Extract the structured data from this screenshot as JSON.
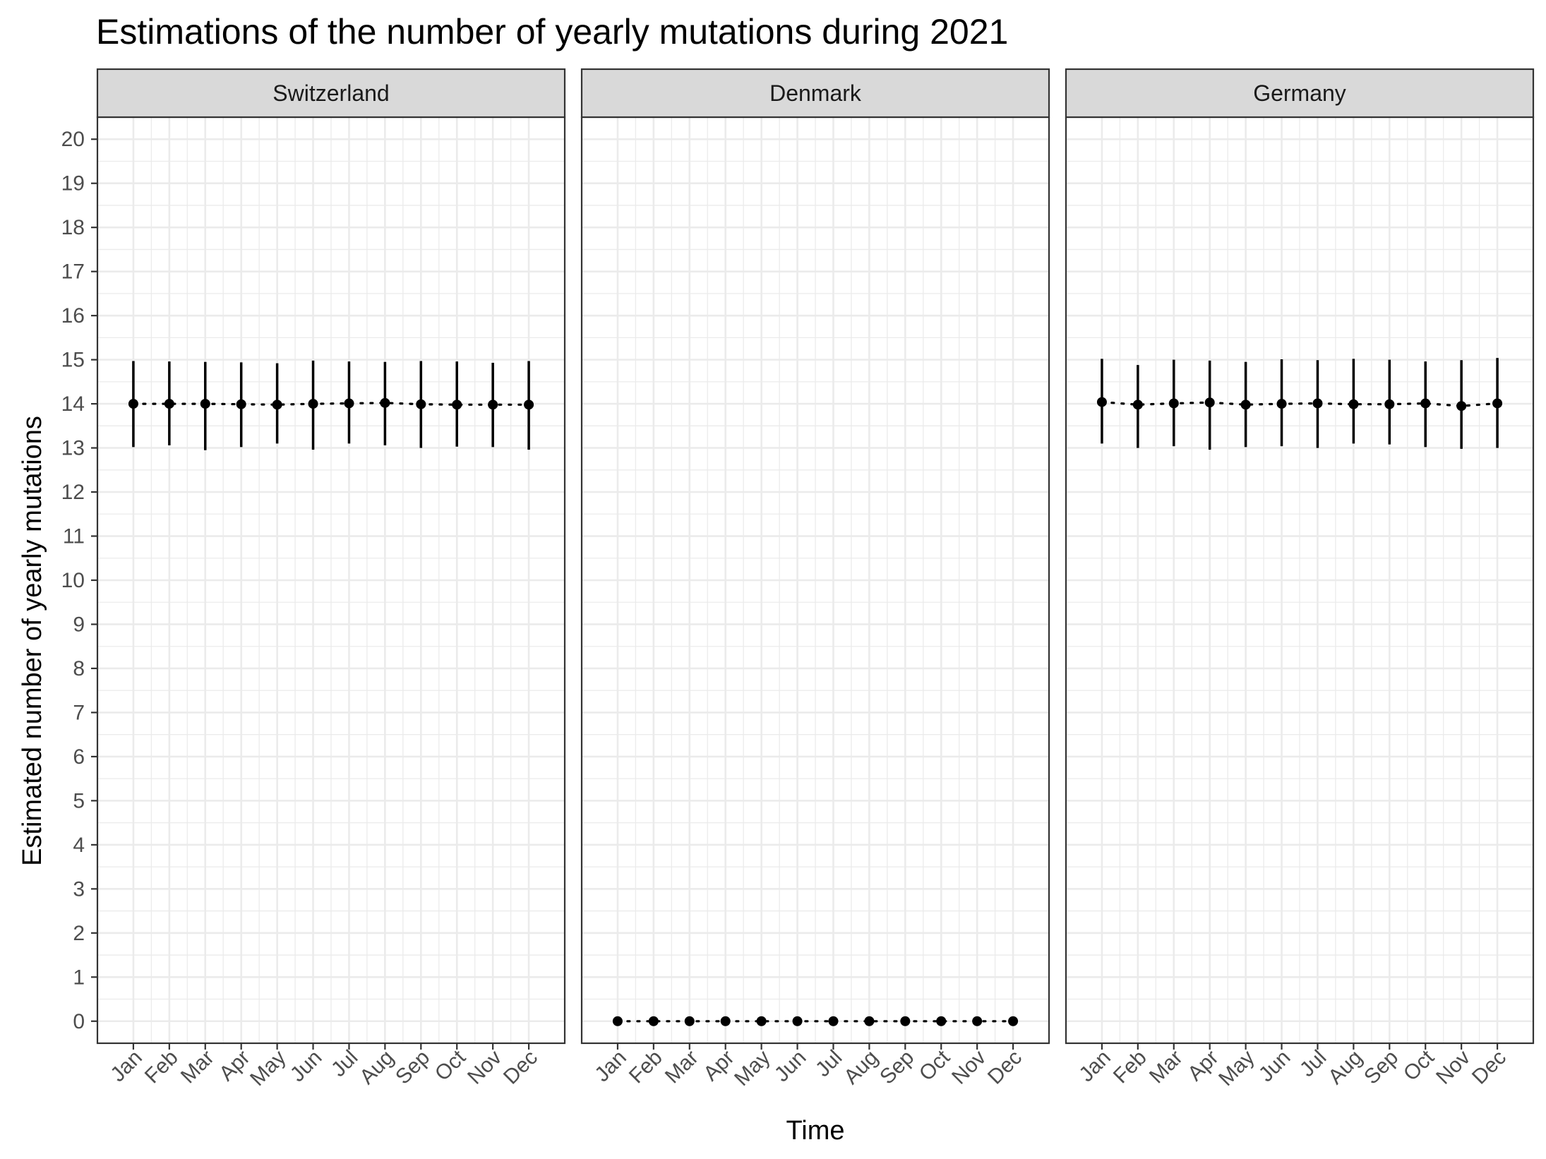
{
  "title": "Estimations of the number of yearly mutations during 2021",
  "chart_data": {
    "type": "scatter",
    "title": "Estimations of the number of yearly mutations during 2021",
    "xlabel": "Time",
    "ylabel": "Estimated number of yearly mutations",
    "categories": [
      "Jan",
      "Feb",
      "Mar",
      "Apr",
      "May",
      "Jun",
      "Jul",
      "Aug",
      "Sep",
      "Oct",
      "Nov",
      "Dec"
    ],
    "y_ticks": [
      0,
      1,
      2,
      3,
      4,
      5,
      6,
      7,
      8,
      9,
      10,
      11,
      12,
      13,
      14,
      15,
      16,
      17,
      18,
      19,
      20
    ],
    "ylim": [
      -0.5,
      20.5
    ],
    "grid": true,
    "line_style": "dotted",
    "colors": {
      "points": "#000000",
      "grid": "#ebebeb",
      "strip_fill": "#d9d9d9",
      "panel_border": "#333333"
    },
    "panels": [
      {
        "name": "Switzerland",
        "values": [
          14.0,
          14.0,
          14.0,
          13.99,
          13.98,
          14.0,
          14.01,
          14.02,
          13.99,
          13.98,
          13.98,
          13.98
        ],
        "lower": [
          13.02,
          13.06,
          12.95,
          13.02,
          13.1,
          12.96,
          13.1,
          13.06,
          13.0,
          13.03,
          13.02,
          12.96
        ],
        "upper": [
          14.97,
          14.96,
          14.95,
          14.94,
          14.92,
          14.98,
          14.96,
          14.95,
          14.97,
          14.96,
          14.93,
          14.97
        ]
      },
      {
        "name": "Denmark",
        "values": [
          0,
          0,
          0,
          0,
          0,
          0,
          0,
          0,
          0,
          0,
          0,
          0
        ],
        "lower": [
          0,
          0,
          0,
          0,
          0,
          0,
          0,
          0,
          0,
          0,
          0,
          0
        ],
        "upper": [
          0,
          0,
          0,
          0,
          0,
          0,
          0,
          0,
          0,
          0,
          0,
          0
        ]
      },
      {
        "name": "Germany",
        "values": [
          14.04,
          13.98,
          14.01,
          14.03,
          13.98,
          14.0,
          14.01,
          13.99,
          13.99,
          14.01,
          13.95,
          14.01
        ],
        "lower": [
          13.1,
          13.0,
          13.04,
          12.96,
          13.02,
          13.04,
          13.0,
          13.1,
          13.08,
          13.02,
          12.98,
          13.0
        ],
        "upper": [
          15.02,
          14.88,
          15.0,
          14.98,
          14.95,
          15.01,
          14.99,
          15.02,
          15.0,
          14.96,
          14.99,
          15.04
        ]
      }
    ]
  }
}
